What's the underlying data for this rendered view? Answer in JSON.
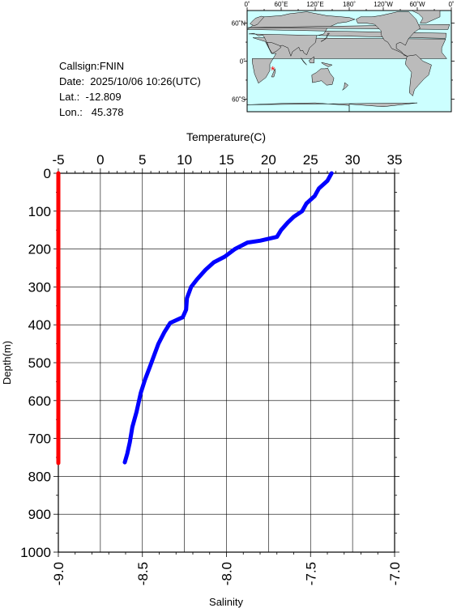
{
  "info": {
    "callsign": "Callsign:FNIN",
    "date": "Date:  2025/10/06 10:26(UTC)",
    "lat": "Lat.:  -12.809",
    "lon": "Lon.:   45.378"
  },
  "map": {
    "lon_labels": [
      "0˚",
      "60˚E",
      "120˚E",
      "180˚",
      "120˚W",
      "60˚W",
      "0˚"
    ],
    "lat_labels": [
      "60˚N",
      "0˚",
      "60˚S"
    ],
    "ocean_color": "#ccffff",
    "land_color": "#bbbbbb",
    "marker_color": "#ff0000",
    "marker": {
      "lon": 45.378,
      "lat": -12.809
    }
  },
  "chart_data": {
    "type": "line",
    "ylabel": "Depth(m)",
    "ylim": [
      0,
      1000
    ],
    "yticks": [
      "0",
      "100",
      "200",
      "300",
      "400",
      "500",
      "600",
      "700",
      "800",
      "900",
      "1000"
    ],
    "y_inverted": true,
    "grid": true,
    "temperature_axis": {
      "label": "Temperature(C)",
      "range": [
        -5,
        35
      ],
      "ticks": [
        "-5",
        "0",
        "5",
        "10",
        "15",
        "20",
        "25",
        "30",
        "35"
      ],
      "position": "top"
    },
    "salinity_axis": {
      "label": "Salinity",
      "range": [
        -9.0,
        -7.0
      ],
      "ticks": [
        "-9.0",
        "-8.5",
        "-8.0",
        "-7.5",
        "-7.0"
      ],
      "position": "bottom"
    },
    "series": [
      {
        "axis": "temperature",
        "color": "#0000ff",
        "points": [
          [
            27.5,
            0
          ],
          [
            27.0,
            20
          ],
          [
            26.0,
            40
          ],
          [
            25.5,
            60
          ],
          [
            24.5,
            80
          ],
          [
            24.0,
            100
          ],
          [
            23.0,
            115
          ],
          [
            22.3,
            130
          ],
          [
            21.5,
            150
          ],
          [
            21.0,
            168
          ],
          [
            19.0,
            178
          ],
          [
            17.5,
            183
          ],
          [
            16.0,
            200
          ],
          [
            14.8,
            220
          ],
          [
            13.5,
            235
          ],
          [
            12.5,
            255
          ],
          [
            11.5,
            280
          ],
          [
            10.8,
            300
          ],
          [
            10.3,
            330
          ],
          [
            10.2,
            360
          ],
          [
            9.8,
            380
          ],
          [
            8.3,
            395
          ],
          [
            7.6,
            420
          ],
          [
            6.9,
            450
          ],
          [
            6.4,
            480
          ],
          [
            5.9,
            510
          ],
          [
            5.3,
            545
          ],
          [
            4.8,
            580
          ],
          [
            4.3,
            630
          ],
          [
            3.8,
            670
          ],
          [
            3.5,
            710
          ],
          [
            3.2,
            740
          ],
          [
            2.9,
            763
          ]
        ]
      },
      {
        "axis": "salinity",
        "color": "#ff0000",
        "points": [
          [
            -9.0,
            0
          ],
          [
            -9.0,
            765
          ]
        ]
      }
    ]
  }
}
